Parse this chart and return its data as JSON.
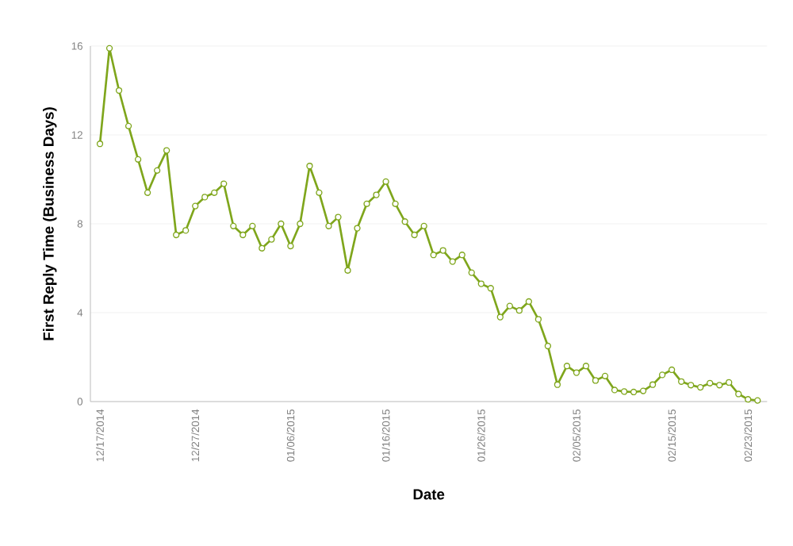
{
  "chart_data": {
    "type": "line",
    "xlabel": "Date",
    "ylabel": "First Reply Time (Business Days)",
    "x": [
      "2014-12-17",
      "2014-12-18",
      "2014-12-19",
      "2014-12-20",
      "2014-12-21",
      "2014-12-22",
      "2014-12-23",
      "2014-12-24",
      "2014-12-25",
      "2014-12-26",
      "2014-12-27",
      "2014-12-28",
      "2014-12-29",
      "2014-12-30",
      "2014-12-31",
      "2015-01-01",
      "2015-01-02",
      "2015-01-03",
      "2015-01-04",
      "2015-01-05",
      "2015-01-06",
      "2015-01-07",
      "2015-01-08",
      "2015-01-09",
      "2015-01-10",
      "2015-01-11",
      "2015-01-12",
      "2015-01-13",
      "2015-01-14",
      "2015-01-15",
      "2015-01-16",
      "2015-01-17",
      "2015-01-18",
      "2015-01-19",
      "2015-01-20",
      "2015-01-21",
      "2015-01-22",
      "2015-01-23",
      "2015-01-24",
      "2015-01-25",
      "2015-01-26",
      "2015-01-27",
      "2015-01-28",
      "2015-01-29",
      "2015-01-30",
      "2015-01-31",
      "2015-02-01",
      "2015-02-02",
      "2015-02-03",
      "2015-02-04",
      "2015-02-05",
      "2015-02-06",
      "2015-02-07",
      "2015-02-08",
      "2015-02-09",
      "2015-02-10",
      "2015-02-11",
      "2015-02-12",
      "2015-02-13",
      "2015-02-14",
      "2015-02-15",
      "2015-02-16",
      "2015-02-17",
      "2015-02-18",
      "2015-02-19",
      "2015-02-20",
      "2015-02-21",
      "2015-02-22",
      "2015-02-23",
      "2015-02-24"
    ],
    "series": [
      {
        "color": "#7fa61c",
        "values": [
          11.6,
          15.9,
          14.0,
          12.4,
          10.9,
          9.4,
          10.4,
          11.3,
          7.5,
          7.7,
          8.8,
          9.2,
          9.4,
          9.8,
          7.9,
          7.5,
          7.9,
          6.9,
          7.3,
          8.0,
          7.0,
          8.0,
          10.6,
          9.4,
          7.9,
          8.3,
          5.9,
          7.8,
          8.9,
          9.3,
          9.9,
          8.9,
          8.1,
          7.5,
          7.9,
          6.6,
          6.8,
          6.3,
          6.6,
          5.8,
          5.3,
          5.1,
          3.8,
          4.3,
          4.1,
          4.5,
          3.7,
          2.5,
          0.76,
          1.6,
          1.3,
          1.6,
          0.95,
          1.15,
          0.52,
          0.45,
          0.43,
          0.48,
          0.76,
          1.2,
          1.43,
          0.9,
          0.74,
          0.64,
          0.83,
          0.74,
          0.86,
          0.34,
          0.1,
          0.05
        ]
      }
    ],
    "xlim": [
      "2014-12-16",
      "2015-02-25"
    ],
    "xticks": [
      {
        "value": "2014-12-17",
        "label": "12/17/2014"
      },
      {
        "value": "2014-12-27",
        "label": "12/27/2014"
      },
      {
        "value": "2015-01-06",
        "label": "01/06/2015"
      },
      {
        "value": "2015-01-16",
        "label": "01/16/2015"
      },
      {
        "value": "2015-01-26",
        "label": "01/26/2015"
      },
      {
        "value": "2015-02-05",
        "label": "02/05/2015"
      },
      {
        "value": "2015-02-15",
        "label": "02/15/2015"
      },
      {
        "value": "2015-02-23",
        "label": "02/23/2015"
      }
    ],
    "ylim": [
      0,
      16
    ],
    "yticks": [
      0,
      4,
      8,
      12,
      16
    ],
    "grid": "y",
    "legend": false,
    "marker": "circle",
    "line_style": "solid"
  }
}
